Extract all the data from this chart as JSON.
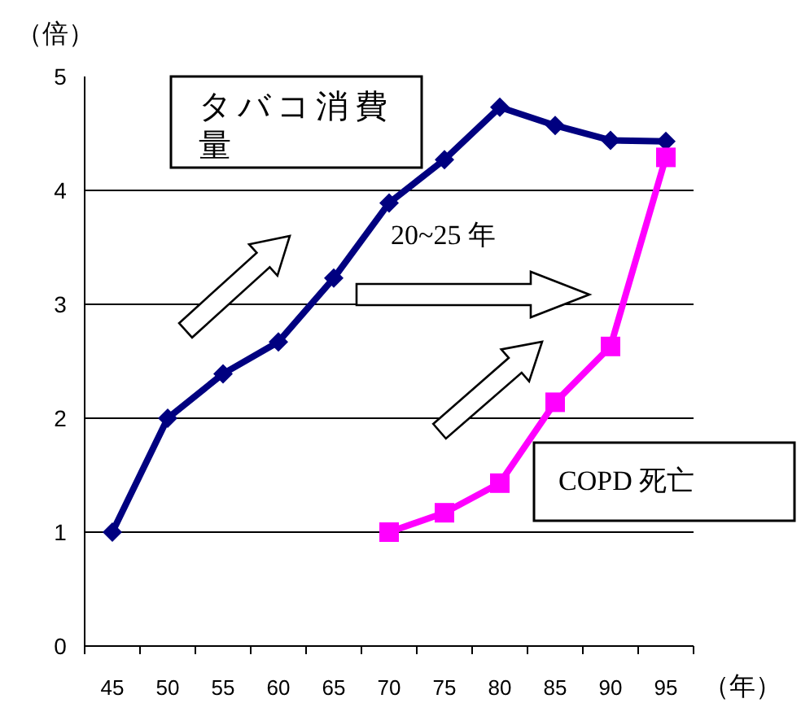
{
  "chart_data": {
    "type": "line",
    "ylabel": "（倍）",
    "xlabel": "（年）",
    "categories": [
      "45",
      "50",
      "55",
      "60",
      "65",
      "70",
      "75",
      "80",
      "85",
      "90",
      "95"
    ],
    "ylim": [
      0,
      5
    ],
    "yticks": [
      0,
      1,
      2,
      3,
      4,
      5
    ],
    "grid": "y",
    "line_style": "solid",
    "series": [
      {
        "name": "タバコ消費量",
        "color": "#000080",
        "marker": "diamond",
        "values": [
          1,
          2,
          2.39,
          2.67,
          3.23,
          3.89,
          4.27,
          4.73,
          4.57,
          4.44,
          4.43
        ]
      },
      {
        "name": "COPD 死亡",
        "color": "#ff00ff",
        "marker": "square",
        "values": [
          null,
          null,
          null,
          null,
          null,
          1,
          1.17,
          1.43,
          2.14,
          2.63,
          4.29
        ]
      }
    ],
    "annotations": [
      "20~25 年"
    ]
  }
}
